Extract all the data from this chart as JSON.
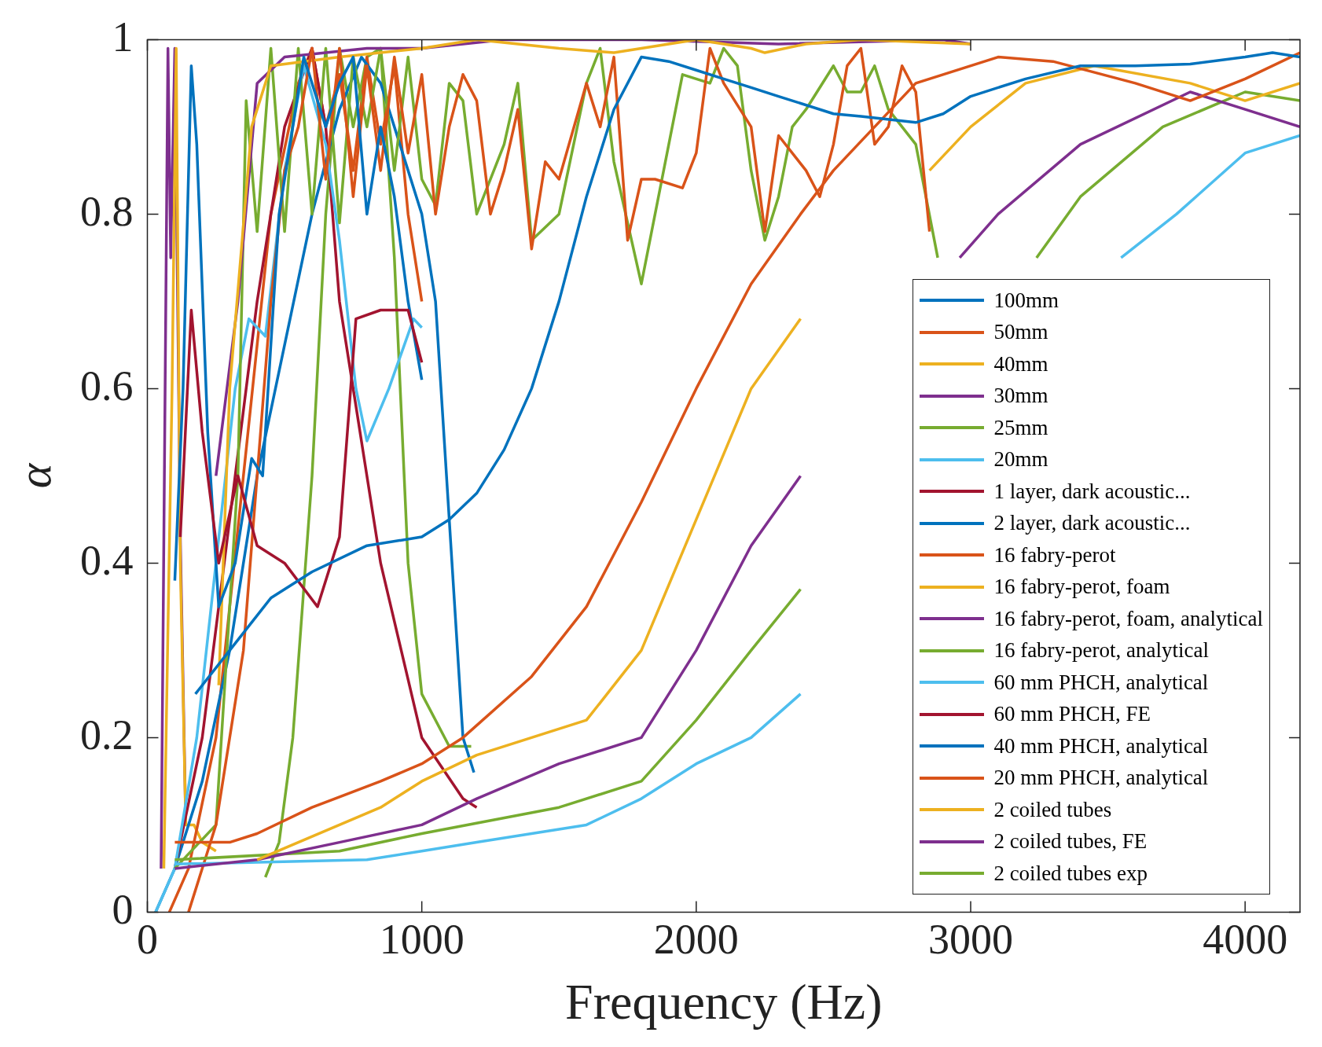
{
  "chart_data": {
    "type": "line",
    "xlabel": "Frequency (Hz)",
    "ylabel": "α",
    "xlim": [
      0,
      4200
    ],
    "xticks": [
      0,
      1000,
      2000,
      3000,
      4000
    ],
    "ylim": [
      0,
      1
    ],
    "yticks": [
      0,
      0.2,
      0.4,
      0.6,
      0.8,
      1
    ],
    "grid": false,
    "legend": "bottom right",
    "marker": "none",
    "line_style": "solid",
    "series": [
      {
        "name": "100mm",
        "color": "#0072bd",
        "x": [
          175,
          300,
          450,
          600,
          800,
          1000,
          1100,
          1200,
          1300,
          1400,
          1500,
          1600,
          1700,
          1800,
          1900,
          2000,
          2100,
          2200,
          2300,
          2500,
          2600,
          2800,
          2900,
          3000,
          3200,
          3400,
          3600,
          3800,
          4000,
          4100,
          4200
        ],
        "values": [
          0.25,
          0.3,
          0.36,
          0.39,
          0.42,
          0.43,
          0.45,
          0.48,
          0.53,
          0.6,
          0.7,
          0.82,
          0.92,
          0.98,
          0.975,
          0.965,
          0.955,
          0.945,
          0.935,
          0.915,
          0.912,
          0.905,
          0.915,
          0.935,
          0.955,
          0.97,
          0.97,
          0.972,
          0.98,
          0.985,
          0.98
        ]
      },
      {
        "name": "50mm",
        "color": "#d95319",
        "x": [
          100,
          300,
          400,
          600,
          850,
          1000,
          1150,
          1400,
          1600,
          1800,
          2000,
          2200,
          2380,
          2500,
          2800,
          3100,
          3300,
          3600,
          3800,
          4000,
          4200
        ],
        "values": [
          0.08,
          0.08,
          0.09,
          0.12,
          0.15,
          0.17,
          0.2,
          0.27,
          0.35,
          0.47,
          0.6,
          0.72,
          0.8,
          0.85,
          0.95,
          0.98,
          0.975,
          0.95,
          0.93,
          0.955,
          0.985
        ]
      },
      {
        "name": "40mm",
        "color": "#edb120",
        "x": [
          400,
          700,
          850,
          1000,
          1200,
          1400,
          1600,
          1800,
          2000,
          2200,
          2380,
          2557,
          2850,
          3000,
          3200,
          3450,
          3800,
          4000,
          4200
        ],
        "values": [
          0.06,
          0.1,
          0.12,
          0.15,
          0.18,
          0.2,
          0.22,
          0.3,
          0.45,
          0.6,
          0.68,
          null,
          0.85,
          0.9,
          0.95,
          0.97,
          0.95,
          0.93,
          0.95
        ]
      },
      {
        "name": "30mm",
        "color": "#7e2f8e",
        "x": [
          100,
          400,
          700,
          1000,
          1200,
          1500,
          1800,
          2000,
          2200,
          2380,
          2700,
          2960,
          3100,
          3400,
          3800,
          4000,
          4200
        ],
        "values": [
          0.05,
          0.06,
          0.08,
          0.1,
          0.13,
          0.17,
          0.2,
          0.3,
          0.42,
          0.5,
          null,
          0.75,
          0.8,
          0.88,
          0.94,
          0.92,
          0.9
        ]
      },
      {
        "name": "25mm",
        "color": "#77ac30",
        "x": [
          100,
          700,
          1000,
          1500,
          1800,
          2000,
          2200,
          2380,
          2800,
          3240,
          3400,
          3700,
          4000,
          4200
        ],
        "values": [
          0.06,
          0.07,
          0.09,
          0.12,
          0.15,
          0.22,
          0.3,
          0.37,
          null,
          0.75,
          0.82,
          0.9,
          0.94,
          0.93
        ]
      },
      {
        "name": "20mm",
        "color": "#4dbeee",
        "x": [
          100,
          800,
          1000,
          1200,
          1600,
          1800,
          2000,
          2200,
          2380,
          3000,
          3548,
          3750,
          4000,
          4200
        ],
        "values": [
          0.055,
          0.06,
          0.07,
          0.08,
          0.1,
          0.13,
          0.17,
          0.2,
          0.25,
          null,
          0.75,
          0.8,
          0.87,
          0.89
        ]
      },
      {
        "name": "1 layer, dark acoustic...",
        "color": "#a2142f",
        "x": [
          120,
          160,
          200,
          260,
          330,
          400,
          500,
          620,
          700,
          760,
          850,
          950,
          1000
        ],
        "values": [
          0.43,
          0.69,
          0.55,
          0.4,
          0.5,
          0.42,
          0.4,
          0.35,
          0.43,
          0.68,
          0.69,
          0.69,
          0.63
        ]
      },
      {
        "name": "2 layer, dark acoustic...",
        "color": "#0072bd",
        "x": [
          100,
          130,
          160,
          180,
          220,
          260,
          320,
          380,
          420,
          480,
          570,
          650,
          700,
          750,
          800,
          850,
          900,
          950,
          1000
        ],
        "values": [
          0.38,
          0.6,
          0.97,
          0.88,
          0.55,
          0.35,
          0.4,
          0.52,
          0.5,
          0.8,
          0.98,
          0.9,
          0.95,
          0.98,
          0.8,
          0.9,
          0.82,
          0.7,
          0.61
        ]
      },
      {
        "name": "16 fabry-perot",
        "color": "#d95319",
        "x": [
          150,
          250,
          350,
          450,
          500,
          550,
          600,
          650,
          700,
          750,
          800,
          850,
          900,
          950,
          1000,
          1050,
          1100,
          1150,
          1200,
          1250,
          1300,
          1350,
          1400,
          1450,
          1500,
          1600,
          1650,
          1700,
          1750,
          1800,
          1850,
          1950,
          2000,
          2050,
          2100,
          2200,
          2250,
          2300,
          2400,
          2450,
          2500,
          2550,
          2600,
          2650,
          2700,
          2750,
          2800,
          2850
        ],
        "values": [
          0,
          0.1,
          0.3,
          0.7,
          0.85,
          0.9,
          0.99,
          0.84,
          0.99,
          0.82,
          0.97,
          0.85,
          0.98,
          0.87,
          0.96,
          0.8,
          0.9,
          0.96,
          0.93,
          0.8,
          0.85,
          0.92,
          0.76,
          0.86,
          0.84,
          0.95,
          0.9,
          0.98,
          0.77,
          0.84,
          0.84,
          0.83,
          0.87,
          0.99,
          0.95,
          0.9,
          0.78,
          0.89,
          0.85,
          0.82,
          0.88,
          0.97,
          0.99,
          0.88,
          0.9,
          0.97,
          0.94,
          0.78
        ]
      },
      {
        "name": "16 fabry-perot, foam",
        "color": "#edb120",
        "x": [
          260,
          300,
          380,
          450,
          700,
          1000,
          1200,
          1500,
          1700,
          1800,
          2000,
          2200,
          2250,
          2400,
          2600,
          3000
        ],
        "values": [
          0.26,
          0.6,
          0.9,
          0.97,
          0.98,
          0.99,
          1,
          0.99,
          0.985,
          0.99,
          1,
          0.99,
          0.985,
          0.995,
          1,
          0.995
        ]
      },
      {
        "name": "16 fabry-perot, foam, analytical",
        "color": "#7e2f8e",
        "x": [
          250,
          330,
          400,
          500,
          800,
          1000,
          1300,
          1800,
          2300,
          2900,
          3000
        ],
        "values": [
          0.5,
          0.7,
          0.95,
          0.98,
          0.99,
          0.99,
          1,
          1,
          0.995,
          1,
          0.995
        ]
      },
      {
        "name": "16 fabry-perot, analytical",
        "color": "#77ac30",
        "x": [
          100,
          250,
          330,
          360,
          400,
          450,
          500,
          550,
          600,
          650,
          700,
          750,
          800,
          850,
          900,
          950,
          1000,
          1050,
          1100,
          1150,
          1200,
          1300,
          1350,
          1400,
          1500,
          1600,
          1650,
          1700,
          1800,
          1900,
          1950,
          2050,
          2100,
          2150,
          2200,
          2250,
          2300,
          2350,
          2400,
          2500,
          2550,
          2600,
          2650,
          2700,
          2800,
          2880
        ],
        "values": [
          0.05,
          0.1,
          0.5,
          0.93,
          0.78,
          0.99,
          0.78,
          0.99,
          0.8,
          0.99,
          0.79,
          0.98,
          0.9,
          0.99,
          0.85,
          0.98,
          0.84,
          0.81,
          0.95,
          0.93,
          0.8,
          0.88,
          0.95,
          0.77,
          0.8,
          0.95,
          0.99,
          0.86,
          0.72,
          0.88,
          0.96,
          0.95,
          0.99,
          0.97,
          0.85,
          0.77,
          0.82,
          0.9,
          0.92,
          0.97,
          0.94,
          0.94,
          0.97,
          0.92,
          0.88,
          0.75
        ]
      },
      {
        "name": "60 mm PHCH, analytical",
        "color": "#4dbeee",
        "x": [
          30,
          100,
          180,
          250,
          320,
          370,
          430,
          500,
          570,
          650,
          700,
          760,
          800,
          880,
          970,
          1000
        ],
        "values": [
          0,
          0.05,
          0.2,
          0.4,
          0.6,
          0.68,
          0.66,
          0.85,
          0.97,
          0.88,
          0.77,
          0.6,
          0.54,
          0.6,
          0.68,
          0.67
        ]
      },
      {
        "name": "60 mm PHCH, FE",
        "color": "#a2142f",
        "x": [
          100,
          200,
          300,
          400,
          500,
          600,
          650,
          700,
          800,
          850,
          1000,
          1150,
          1200
        ],
        "values": [
          0.05,
          0.2,
          0.45,
          0.7,
          0.9,
          0.99,
          0.9,
          0.7,
          0.5,
          0.4,
          0.2,
          0.13,
          0.12
        ]
      },
      {
        "name": "40 mm PHCH, analytical",
        "color": "#0072bd",
        "x": [
          30,
          100,
          200,
          300,
          400,
          500,
          600,
          700,
          780,
          850,
          900,
          950,
          1000,
          1050,
          1100,
          1150,
          1190
        ],
        "values": [
          0,
          0.05,
          0.15,
          0.3,
          0.5,
          0.65,
          0.8,
          0.92,
          0.98,
          0.95,
          0.9,
          0.85,
          0.8,
          0.7,
          0.45,
          0.2,
          0.16
        ]
      },
      {
        "name": "20 mm PHCH, analytical",
        "color": "#d95319",
        "x": [
          80,
          150,
          250,
          350,
          450,
          550,
          600,
          650,
          700,
          750,
          800,
          850,
          900,
          950,
          1000
        ],
        "values": [
          0,
          0.05,
          0.2,
          0.5,
          0.8,
          0.95,
          0.99,
          0.9,
          0.96,
          0.85,
          0.98,
          0.88,
          0.97,
          0.8,
          0.7
        ]
      },
      {
        "name": "2 coiled tubes",
        "color": "#edb120",
        "x": [
          60,
          90,
          105,
          120,
          140,
          170,
          200,
          250
        ],
        "values": [
          0.05,
          0.6,
          0.99,
          0.4,
          0.1,
          0.1,
          0.08,
          0.07
        ]
      },
      {
        "name": "2 coiled tubes, FE",
        "color": "#7e2f8e",
        "x": [
          50,
          75,
          85,
          100,
          120,
          140
        ],
        "values": [
          0.05,
          0.99,
          0.75,
          0.99,
          0.43,
          0.1
        ]
      },
      {
        "name": "2 coiled tubes exp",
        "color": "#77ac30",
        "x": [
          430,
          480,
          530,
          600,
          650,
          700,
          750,
          800,
          850,
          900,
          950,
          1000,
          1100,
          1180
        ],
        "values": [
          0.04,
          0.08,
          0.2,
          0.5,
          0.8,
          0.99,
          0.9,
          0.98,
          0.99,
          0.75,
          0.4,
          0.25,
          0.19,
          0.19
        ]
      }
    ]
  }
}
